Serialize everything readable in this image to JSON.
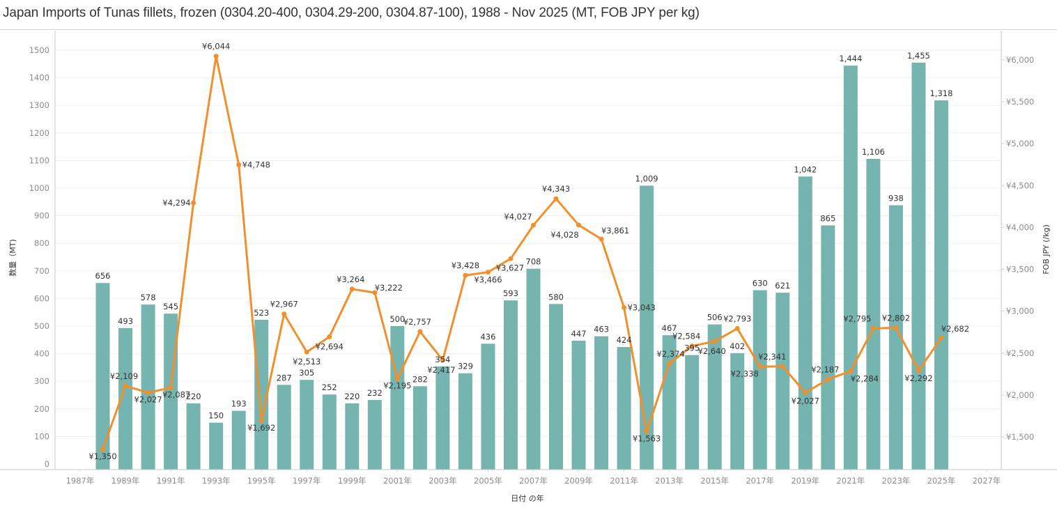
{
  "title": "Japan Imports of Tunas fillets, frozen (0304.20-400, 0304.29-200, 0304.87-100), 1988 - Nov 2025 (MT, FOB JPY per kg)",
  "chart_data": {
    "type": "bar+line",
    "title": "Japan Imports of Tunas fillets, frozen (0304.20-400, 0304.29-200, 0304.87-100), 1988 - Nov 2025 (MT, FOB JPY per kg)",
    "xlabel": "日付 の年",
    "ylabel_left": "数量（MT)",
    "ylabel_right": "FOB JPY (/kg)",
    "x_range": [
      1987,
      2027
    ],
    "x_ticks": [
      "1987年",
      "1989年",
      "1991年",
      "1993年",
      "1995年",
      "1997年",
      "1999年",
      "2001年",
      "2003年",
      "2005年",
      "2007年",
      "2009年",
      "2011年",
      "2013年",
      "2015年",
      "2017年",
      "2019年",
      "2021年",
      "2023年",
      "2025年",
      "2027年"
    ],
    "ylim_left": [
      0,
      1550
    ],
    "y_ticks_left": [
      "0",
      "100",
      "200",
      "300",
      "400",
      "500",
      "600",
      "700",
      "800",
      "900",
      "1000",
      "1100",
      "1200",
      "1300",
      "1400",
      "1500"
    ],
    "ylim_right": [
      1130,
      6220
    ],
    "y_ticks_right": [
      "¥1,500",
      "¥2,000",
      "¥2,500",
      "¥3,000",
      "¥3,500",
      "¥4,000",
      "¥4,500",
      "¥5,000",
      "¥5,500",
      "¥6,000"
    ],
    "grid": true,
    "colors": {
      "bars": "#76b5af",
      "line": "#f28e2b"
    },
    "years": [
      1988,
      1989,
      1990,
      1991,
      1992,
      1993,
      1994,
      1995,
      1996,
      1997,
      1998,
      1999,
      2000,
      2001,
      2002,
      2003,
      2004,
      2005,
      2006,
      2007,
      2008,
      2009,
      2010,
      2011,
      2012,
      2013,
      2014,
      2015,
      2016,
      2017,
      2018,
      2019,
      2020,
      2021,
      2022,
      2023,
      2024,
      2025
    ],
    "series": [
      {
        "name": "数量（MT)",
        "type": "bar",
        "axis": "left",
        "values": [
          656,
          493,
          578,
          545,
          220,
          150,
          193,
          523,
          287,
          305,
          252,
          220,
          232,
          500,
          282,
          354,
          329,
          436,
          593,
          708,
          580,
          447,
          463,
          424,
          1009,
          467,
          395,
          506,
          402,
          630,
          621,
          1042,
          865,
          1444,
          1106,
          938,
          1455,
          1318
        ],
        "labels": [
          "656",
          "493",
          "578",
          "545",
          "220",
          "150",
          "193",
          "523",
          "287",
          "305",
          "252",
          "220",
          "232",
          "500",
          "282",
          "354",
          "329",
          "436",
          "593",
          "708",
          "580",
          "447",
          "463",
          "424",
          "1,009",
          "467",
          "395",
          "506",
          "402",
          "630",
          "621",
          "1,042",
          "865",
          "1,444",
          "1,106",
          "938",
          "1,455",
          "1,318"
        ]
      },
      {
        "name": "FOB JPY (/kg)",
        "type": "line",
        "axis": "right",
        "values": [
          1350,
          2109,
          2027,
          2087,
          4294,
          6044,
          4748,
          1692,
          2967,
          2513,
          2694,
          3264,
          3222,
          2195,
          2757,
          2417,
          3428,
          3466,
          3627,
          4027,
          4343,
          4028,
          3861,
          3043,
          1563,
          2374,
          2584,
          2640,
          2793,
          2338,
          2341,
          2027,
          2187,
          2284,
          2795,
          2802,
          2292,
          2682
        ],
        "labels": [
          "¥1,350",
          "¥2,109",
          "¥2,027",
          "¥2,087",
          "¥4,294",
          "¥6,044",
          "¥4,748",
          "¥1,692",
          "¥2,967",
          "¥2,513",
          "¥2,694",
          "¥3,264",
          "¥3,222",
          "¥2,195",
          "¥2,757",
          "¥2,417",
          "¥3,428",
          "¥3,466",
          "¥3,627",
          "¥4,027",
          "¥4,343",
          "¥4,028",
          "¥3,861",
          "¥3,043",
          "¥1,563",
          "¥2,374",
          "¥2,584",
          "¥2,640",
          "¥2,793",
          "¥2,338",
          "¥2,341",
          "¥2,027",
          "¥2,187",
          "¥2,284",
          "¥2,795",
          "¥2,802",
          "¥2,292",
          "¥2,682"
        ]
      }
    ]
  }
}
